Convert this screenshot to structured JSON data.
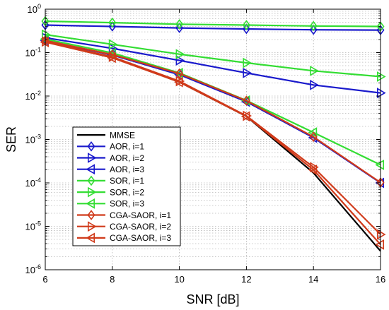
{
  "chart_data": {
    "type": "line",
    "title": "",
    "xlabel": "SNR [dB]",
    "ylabel": "SER",
    "xlim": [
      6,
      16
    ],
    "ylim": [
      1e-06,
      1
    ],
    "yscale": "log",
    "grid": true,
    "legend_position": "bottom-left",
    "x": [
      6,
      8,
      10,
      12,
      14,
      16
    ],
    "x_ticks": [
      "6",
      "8",
      "10",
      "12",
      "14",
      "16"
    ],
    "y_ticks": [
      {
        "value": 1e-06,
        "base": "10",
        "exp": "-6"
      },
      {
        "value": 1e-05,
        "base": "10",
        "exp": "-5"
      },
      {
        "value": 0.0001,
        "base": "10",
        "exp": "-4"
      },
      {
        "value": 0.001,
        "base": "10",
        "exp": "-3"
      },
      {
        "value": 0.01,
        "base": "10",
        "exp": "-2"
      },
      {
        "value": 0.1,
        "base": "10",
        "exp": "-1"
      },
      {
        "value": 1,
        "base": "10",
        "exp": "0"
      }
    ],
    "series": [
      {
        "name": "MMSE",
        "color": "#000000",
        "marker": "none",
        "values": [
          0.185,
          0.078,
          0.021,
          0.0034,
          0.00017,
          2.7e-06
        ]
      },
      {
        "name": "AOR, i=1",
        "color": "#1a1acc",
        "marker": "diamond",
        "values": [
          0.43,
          0.4,
          0.37,
          0.35,
          0.335,
          0.33
        ]
      },
      {
        "name": "AOR, i=2",
        "color": "#1a1acc",
        "marker": "triangle-right",
        "values": [
          0.22,
          0.125,
          0.066,
          0.034,
          0.018,
          0.0118
        ]
      },
      {
        "name": "AOR, i=3",
        "color": "#1a1acc",
        "marker": "triangle-left",
        "values": [
          0.19,
          0.088,
          0.031,
          0.0074,
          0.0011,
          0.0001
        ]
      },
      {
        "name": "SOR, i=1",
        "color": "#33dd33",
        "marker": "diamond",
        "values": [
          0.53,
          0.49,
          0.45,
          0.43,
          0.41,
          0.4
        ]
      },
      {
        "name": "SOR, i=2",
        "color": "#33dd33",
        "marker": "triangle-right",
        "values": [
          0.26,
          0.155,
          0.092,
          0.058,
          0.038,
          0.028
        ]
      },
      {
        "name": "SOR, i=3",
        "color": "#33dd33",
        "marker": "triangle-left",
        "values": [
          0.205,
          0.098,
          0.034,
          0.0079,
          0.00145,
          0.00026
        ]
      },
      {
        "name": "CGA-SAOR, i=1",
        "color": "#d03a1a",
        "marker": "diamond",
        "values": [
          0.19,
          0.09,
          0.033,
          0.0078,
          0.00115,
          0.000102
        ]
      },
      {
        "name": "CGA-SAOR, i=2",
        "color": "#d03a1a",
        "marker": "triangle-right",
        "values": [
          0.18,
          0.08,
          0.022,
          0.0035,
          0.00023,
          6.5e-06
        ]
      },
      {
        "name": "CGA-SAOR, i=3",
        "color": "#d03a1a",
        "marker": "triangle-left",
        "values": [
          0.175,
          0.076,
          0.021,
          0.0034,
          0.0002,
          3.8e-06
        ]
      }
    ]
  }
}
